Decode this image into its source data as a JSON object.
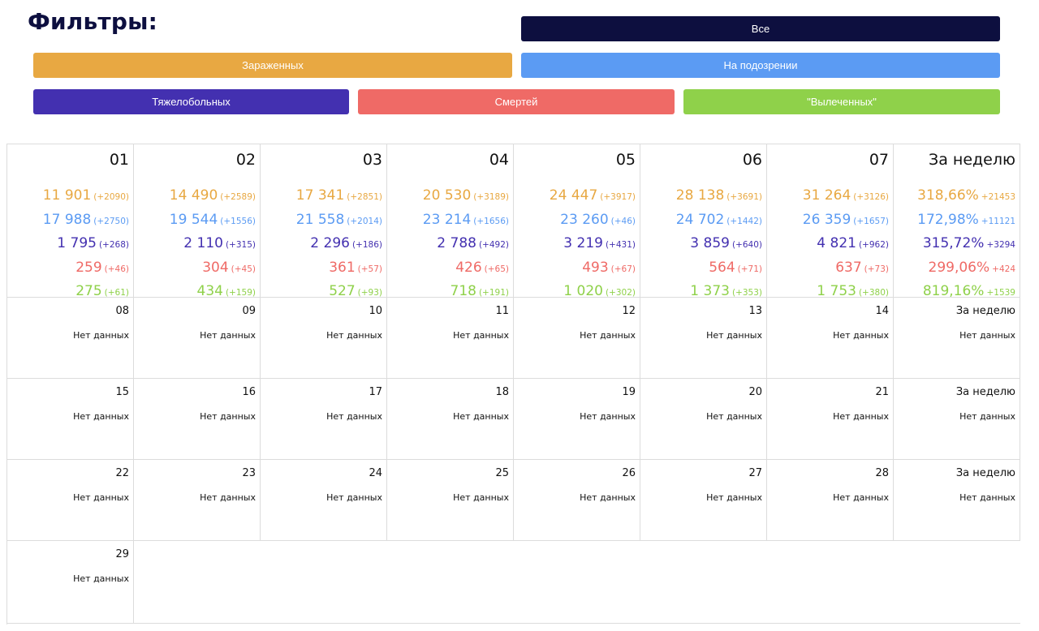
{
  "header": {
    "title": "Фильтры:"
  },
  "filters": {
    "all": "Все",
    "infected": "Зараженных",
    "suspected": "На подозрении",
    "severe": "Тяжелобольных",
    "deaths": "Смертей",
    "recovered": "\"Вылеченных\""
  },
  "colors": {
    "infected": "#e8a842",
    "suspected": "#5b9bf3",
    "severe": "#4330b0",
    "deaths": "#ef6a66",
    "recovered": "#8fd14a",
    "dark": "#0d0f3f"
  },
  "week1": [
    {
      "day": "01",
      "stats": [
        [
          "11 901",
          "(+2090)"
        ],
        [
          "17 988",
          "(+2750)"
        ],
        [
          "1 795",
          "(+268)"
        ],
        [
          "259",
          "(+46)"
        ],
        [
          "275",
          "(+61)"
        ]
      ]
    },
    {
      "day": "02",
      "stats": [
        [
          "14 490",
          "(+2589)"
        ],
        [
          "19 544",
          "(+1556)"
        ],
        [
          "2 110",
          "(+315)"
        ],
        [
          "304",
          "(+45)"
        ],
        [
          "434",
          "(+159)"
        ]
      ]
    },
    {
      "day": "03",
      "stats": [
        [
          "17 341",
          "(+2851)"
        ],
        [
          "21 558",
          "(+2014)"
        ],
        [
          "2 296",
          "(+186)"
        ],
        [
          "361",
          "(+57)"
        ],
        [
          "527",
          "(+93)"
        ]
      ]
    },
    {
      "day": "04",
      "stats": [
        [
          "20 530",
          "(+3189)"
        ],
        [
          "23 214",
          "(+1656)"
        ],
        [
          "2 788",
          "(+492)"
        ],
        [
          "426",
          "(+65)"
        ],
        [
          "718",
          "(+191)"
        ]
      ]
    },
    {
      "day": "05",
      "stats": [
        [
          "24 447",
          "(+3917)"
        ],
        [
          "23 260",
          "(+46)"
        ],
        [
          "3 219",
          "(+431)"
        ],
        [
          "493",
          "(+67)"
        ],
        [
          "1 020",
          "(+302)"
        ]
      ]
    },
    {
      "day": "06",
      "stats": [
        [
          "28 138",
          "(+3691)"
        ],
        [
          "24 702",
          "(+1442)"
        ],
        [
          "3 859",
          "(+640)"
        ],
        [
          "564",
          "(+71)"
        ],
        [
          "1 373",
          "(+353)"
        ]
      ]
    },
    {
      "day": "07",
      "stats": [
        [
          "31 264",
          "(+3126)"
        ],
        [
          "26 359",
          "(+1657)"
        ],
        [
          "4 821",
          "(+962)"
        ],
        [
          "637",
          "(+73)"
        ],
        [
          "1 753",
          "(+380)"
        ]
      ]
    },
    {
      "day": "За неделю",
      "stats": [
        [
          "318,66%",
          "+21453"
        ],
        [
          "172,98%",
          "+11121"
        ],
        [
          "315,72%",
          "+3294"
        ],
        [
          "299,06%",
          "+424"
        ],
        [
          "819,16%",
          "+1539"
        ]
      ]
    }
  ],
  "weeks": [
    [
      "08",
      "09",
      "10",
      "11",
      "12",
      "13",
      "14",
      "За неделю"
    ],
    [
      "15",
      "16",
      "17",
      "18",
      "19",
      "20",
      "21",
      "За неделю"
    ],
    [
      "22",
      "23",
      "24",
      "25",
      "26",
      "27",
      "28",
      "За неделю"
    ],
    [
      "29"
    ]
  ],
  "no_data": "Нет данных"
}
